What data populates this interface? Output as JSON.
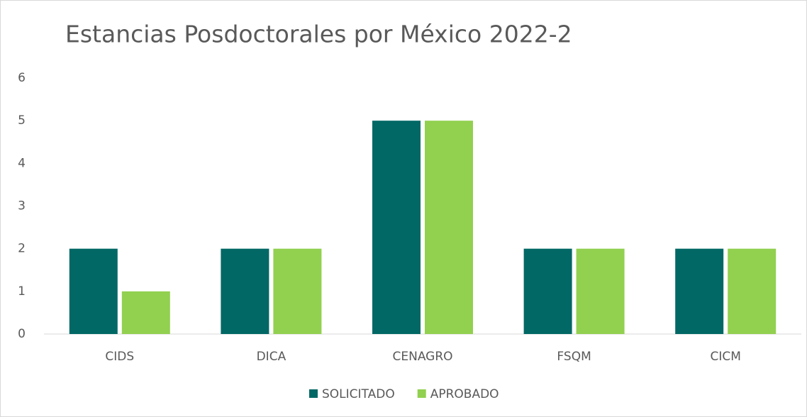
{
  "chart_data": {
    "type": "bar",
    "title": "Estancias Posdoctorales por México 2022-2",
    "categories": [
      "CIDS",
      "DICA",
      "CENAGRO",
      "FSQM",
      "CICM"
    ],
    "series": [
      {
        "name": "SOLICITADO",
        "color": "#026865",
        "values": [
          2,
          2,
          5,
          2,
          2
        ]
      },
      {
        "name": "APROBADO",
        "color": "#92d050",
        "values": [
          1,
          2,
          5,
          2,
          2
        ]
      }
    ],
    "ylim": [
      0,
      6
    ],
    "yticks": [
      0,
      1,
      2,
      3,
      4,
      5,
      6
    ],
    "grid": false,
    "legend": "bottom"
  }
}
